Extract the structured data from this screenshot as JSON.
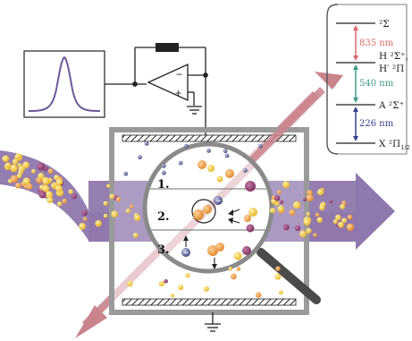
{
  "colors": {
    "beam_purple": "#8f78ad",
    "laser_pink": "#c9848c",
    "chamber_gray": "#9a9a9a",
    "molecule_yellow": "#f3c433",
    "molecule_orange": "#ee9a3a",
    "molecule_plum": "#8d3f72",
    "red_transition": "#d8686b",
    "green_transition": "#3f9a86",
    "blue_transition": "#3a3f8f"
  },
  "energy_levels": {
    "top": "²Σ",
    "h_state_line1": "H ²Σ⁺,",
    "h_state_line2": "H′ ²Π",
    "a_state": "A ²Σ⁺",
    "x_state": "X ²Π",
    "x_state_subscript": "1/2"
  },
  "transitions": {
    "red": "835 nm",
    "green": "540 nm",
    "blue": "226 nm"
  },
  "steps": {
    "one": "1.",
    "two": "2.",
    "three": "3."
  },
  "signs": {
    "plus": "+",
    "minus": "−"
  },
  "icons": [
    "gaussian-pulse-icon",
    "op-amp-icon",
    "resistor-icon",
    "ground-icon",
    "magnifier-icon",
    "electron-icon",
    "ion-icon"
  ]
}
